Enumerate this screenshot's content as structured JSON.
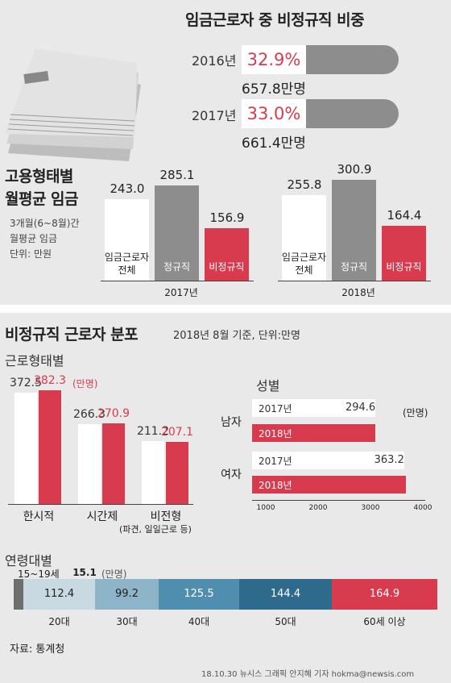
{
  "top": {
    "title": "임금근로자 중 비정규직 비중",
    "rows": [
      {
        "year": "2016년",
        "pct": "32.9%",
        "count": "657.8만명"
      },
      {
        "year": "2017년",
        "pct": "33.0%",
        "count": "661.4만명"
      }
    ]
  },
  "wage": {
    "title_line1": "고용형태별",
    "title_line2": "월평균 임금",
    "note_line1": "3개월(6~8월)간",
    "note_line2": "월평균 임금",
    "note_line3": "단위: 만원",
    "cat_all_1": "임금근로자",
    "cat_all_2": "전체",
    "cat_regular": "정규직",
    "cat_irregular": "비정규직"
  },
  "dist": {
    "title": "비정규직 근로자 분포",
    "subtitle": "2018년 8월 기준, 단위:만명",
    "work_title": "근로형태별",
    "work_unit": "(만명)",
    "work_cat3_sub": "(파견, 일일근로 등)",
    "gender_title": "성별",
    "gender_unit": "(만명)",
    "age_title": "연령대별",
    "age_first_label": "15~19세",
    "age_unit": "(만명)"
  },
  "footer": {
    "source": "자료: 통계청",
    "credit": "18.10.30 뉴시스 그래픽 안지혜 기자 hokma@newsis.com"
  },
  "colors": {
    "red": "#d93b4e",
    "gray": "#8d8d8d",
    "white": "#ffffff"
  },
  "chart_data": [
    {
      "type": "bar",
      "title": "고용형태별 월평균 임금",
      "categories": [
        "2017년",
        "2018년"
      ],
      "series": [
        {
          "name": "임금근로자 전체",
          "values": [
            243.0,
            255.8
          ]
        },
        {
          "name": "정규직",
          "values": [
            285.1,
            300.9
          ]
        },
        {
          "name": "비정규직",
          "values": [
            156.9,
            164.4
          ]
        }
      ]
    },
    {
      "type": "bar",
      "title": "근로형태별",
      "categories": [
        "한시적",
        "시간제",
        "비전형"
      ],
      "series": [
        {
          "name": "2017년",
          "values": [
            372.5,
            266.3,
            211.2
          ]
        },
        {
          "name": "2018년",
          "values": [
            382.3,
            270.9,
            207.1
          ]
        }
      ]
    },
    {
      "type": "bar",
      "title": "성별",
      "categories": [
        "남자",
        "여자"
      ],
      "series": [
        {
          "name": "2017년",
          "values": [
            294.6,
            363.2
          ]
        },
        {
          "name": "2018년",
          "values": [
            293.6,
            367.8
          ]
        }
      ],
      "xticks": [
        "1000",
        "2000",
        "3000",
        "4000"
      ]
    },
    {
      "type": "bar",
      "title": "연령대별",
      "categories": [
        "15~19세",
        "20대",
        "30대",
        "40대",
        "50대",
        "60세 이상"
      ],
      "values": [
        15.1,
        112.4,
        99.2,
        125.5,
        144.4,
        164.9
      ]
    }
  ]
}
